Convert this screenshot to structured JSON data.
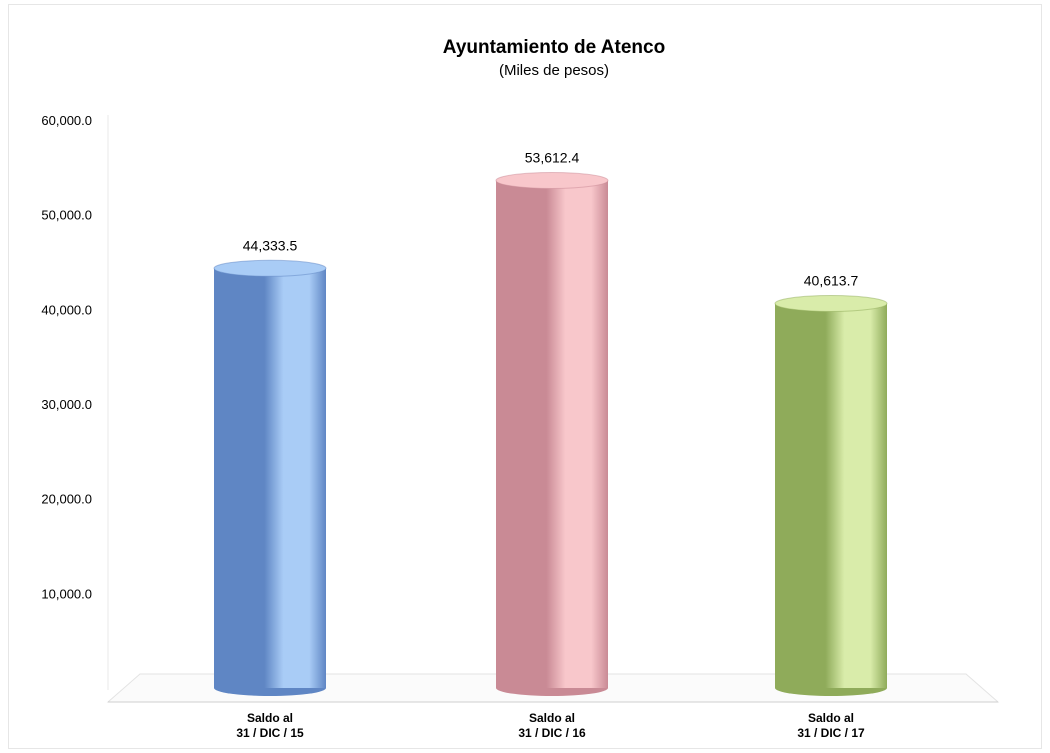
{
  "chart_data": {
    "type": "bar",
    "title": "Ayuntamiento de Atenco",
    "subtitle": "(Miles de pesos)",
    "categories": [
      [
        "Saldo al",
        "31 / DIC / 15"
      ],
      [
        "Saldo al",
        "31 / DIC / 16"
      ],
      [
        "Saldo al",
        "31 / DIC / 17"
      ]
    ],
    "values": [
      44333.5,
      53612.4,
      40613.7
    ],
    "value_labels": [
      "44,333.5",
      "53,612.4",
      "40,613.7"
    ],
    "yticks": [
      10000,
      20000,
      30000,
      40000,
      50000,
      60000
    ],
    "ytick_labels": [
      "10,000.0",
      "20,000.0",
      "30,000.0",
      "40,000.0",
      "50,000.0",
      "60,000.0"
    ],
    "ylim": [
      0,
      60000
    ],
    "bar_style": "cylinder",
    "grid": false,
    "colors": [
      {
        "dark": "#5f86c4",
        "light": "#a9ccf6"
      },
      {
        "dark": "#c98a95",
        "light": "#f8c7cb"
      },
      {
        "dark": "#8fab5a",
        "light": "#d9ecaa"
      }
    ]
  }
}
